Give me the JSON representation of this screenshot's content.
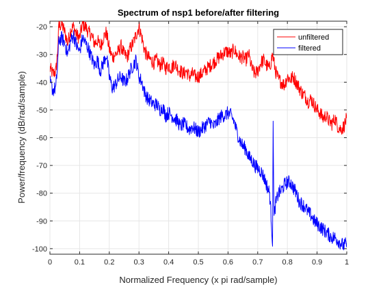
{
  "chart_data": {
    "type": "line",
    "title": "Spectrum of nsp1 before/after filtering",
    "xlabel": "Normalized Frequency (x pi rad/sample)",
    "ylabel": "Power/frequency (dB/rad/sample)",
    "xlim": [
      0,
      1
    ],
    "ylim": [
      -102,
      -18
    ],
    "x_ticks": [
      "0",
      "0.1",
      "0.2",
      "0.3",
      "0.4",
      "0.5",
      "0.6",
      "0.7",
      "0.8",
      "0.9",
      "1"
    ],
    "y_ticks": [
      "-20",
      "-30",
      "-40",
      "-50",
      "-60",
      "-70",
      "-80",
      "-90",
      "-100"
    ],
    "grid": true,
    "legend_position": "top-right",
    "series": [
      {
        "name": "unfiltered",
        "color": "#ff0000",
        "x": [
          0,
          0.01,
          0.02,
          0.025,
          0.03,
          0.04,
          0.05,
          0.06,
          0.07,
          0.08,
          0.09,
          0.1,
          0.11,
          0.12,
          0.13,
          0.14,
          0.15,
          0.16,
          0.17,
          0.18,
          0.19,
          0.2,
          0.21,
          0.22,
          0.23,
          0.24,
          0.25,
          0.26,
          0.27,
          0.28,
          0.29,
          0.3,
          0.31,
          0.32,
          0.33,
          0.34,
          0.35,
          0.36,
          0.37,
          0.38,
          0.39,
          0.4,
          0.41,
          0.42,
          0.43,
          0.44,
          0.45,
          0.46,
          0.47,
          0.48,
          0.49,
          0.5,
          0.51,
          0.52,
          0.53,
          0.54,
          0.55,
          0.56,
          0.57,
          0.58,
          0.59,
          0.6,
          0.61,
          0.62,
          0.63,
          0.64,
          0.65,
          0.66,
          0.67,
          0.68,
          0.69,
          0.7,
          0.71,
          0.72,
          0.73,
          0.74,
          0.75,
          0.76,
          0.77,
          0.78,
          0.79,
          0.8,
          0.81,
          0.82,
          0.83,
          0.84,
          0.85,
          0.86,
          0.87,
          0.88,
          0.89,
          0.9,
          0.91,
          0.92,
          0.93,
          0.94,
          0.95,
          0.96,
          0.97,
          0.98,
          0.99,
          1.0
        ],
        "values": [
          -35,
          -37,
          -36,
          -30,
          -20,
          -19,
          -22,
          -26,
          -21,
          -20,
          -23,
          -24,
          -19,
          -20,
          -22,
          -23,
          -26,
          -25,
          -27,
          -24,
          -22,
          -28,
          -31,
          -30,
          -29,
          -27,
          -30,
          -31,
          -28,
          -26,
          -23,
          -20,
          -24,
          -29,
          -31,
          -32,
          -33,
          -32,
          -34,
          -33,
          -35,
          -34,
          -35,
          -33,
          -35,
          -36,
          -37,
          -36,
          -38,
          -37,
          -38,
          -38,
          -37,
          -36,
          -35,
          -34,
          -33,
          -32,
          -31,
          -30,
          -29,
          -29,
          -30,
          -28,
          -30,
          -31,
          -31,
          -32,
          -30,
          -35,
          -37,
          -36,
          -33,
          -32,
          -34,
          -35,
          -30,
          -36,
          -39,
          -40,
          -41,
          -38,
          -39,
          -38,
          -40,
          -42,
          -44,
          -45,
          -47,
          -46,
          -48,
          -50,
          -51,
          -53,
          -52,
          -54,
          -55,
          -53,
          -56,
          -57,
          -56,
          -53
        ]
      },
      {
        "name": "filtered",
        "color": "#0000ff",
        "x": [
          0,
          0.01,
          0.02,
          0.025,
          0.03,
          0.04,
          0.05,
          0.06,
          0.07,
          0.08,
          0.09,
          0.1,
          0.11,
          0.12,
          0.13,
          0.14,
          0.15,
          0.16,
          0.17,
          0.18,
          0.19,
          0.2,
          0.21,
          0.22,
          0.23,
          0.24,
          0.25,
          0.26,
          0.27,
          0.28,
          0.29,
          0.3,
          0.31,
          0.32,
          0.33,
          0.34,
          0.35,
          0.36,
          0.37,
          0.38,
          0.39,
          0.4,
          0.41,
          0.42,
          0.43,
          0.44,
          0.45,
          0.46,
          0.47,
          0.48,
          0.49,
          0.5,
          0.51,
          0.52,
          0.53,
          0.54,
          0.55,
          0.56,
          0.57,
          0.58,
          0.59,
          0.6,
          0.61,
          0.62,
          0.63,
          0.64,
          0.65,
          0.66,
          0.67,
          0.68,
          0.69,
          0.7,
          0.71,
          0.72,
          0.73,
          0.74,
          0.745,
          0.75,
          0.752,
          0.755,
          0.76,
          0.77,
          0.78,
          0.79,
          0.8,
          0.81,
          0.82,
          0.83,
          0.84,
          0.85,
          0.86,
          0.87,
          0.88,
          0.89,
          0.9,
          0.91,
          0.92,
          0.93,
          0.94,
          0.95,
          0.96,
          0.97,
          0.98,
          0.99,
          1.0
        ],
        "values": [
          -40,
          -43,
          -42,
          -35,
          -25,
          -24,
          -26,
          -30,
          -25,
          -23,
          -27,
          -29,
          -24,
          -26,
          -28,
          -31,
          -34,
          -32,
          -36,
          -33,
          -30,
          -38,
          -42,
          -41,
          -39,
          -38,
          -40,
          -39,
          -36,
          -34,
          -32,
          -38,
          -40,
          -44,
          -46,
          -47,
          -48,
          -48,
          -50,
          -49,
          -52,
          -51,
          -52,
          -53,
          -54,
          -56,
          -55,
          -56,
          -57,
          -56,
          -57,
          -58,
          -57,
          -56,
          -55,
          -54,
          -56,
          -55,
          -53,
          -52,
          -52,
          -51,
          -52,
          -54,
          -58,
          -61,
          -63,
          -64,
          -67,
          -68,
          -70,
          -71,
          -72,
          -74,
          -77,
          -80,
          -88,
          -98,
          -55,
          -89,
          -84,
          -80,
          -79,
          -77,
          -76,
          -76,
          -78,
          -80,
          -83,
          -84,
          -85,
          -87,
          -88,
          -90,
          -91,
          -92,
          -93,
          -94,
          -95,
          -96,
          -96,
          -97,
          -98,
          -99,
          -98
        ]
      }
    ]
  }
}
